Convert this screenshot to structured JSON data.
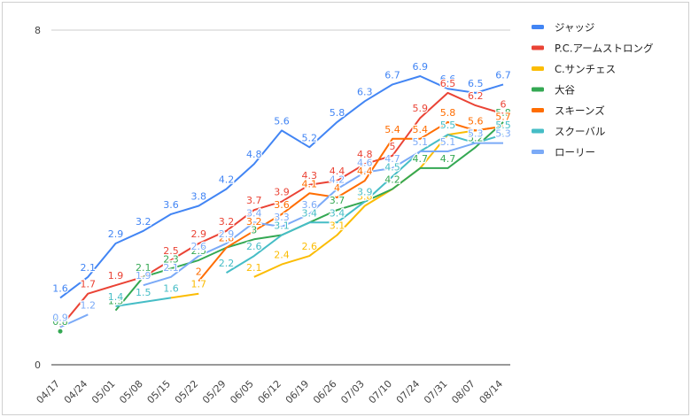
{
  "chart_data": {
    "type": "line",
    "title": "",
    "xlabel": "",
    "ylabel": "",
    "ylim": [
      0,
      8
    ],
    "y_ticks": [
      "0",
      "8"
    ],
    "grid": "horizontal",
    "legend": "right",
    "categories": [
      "04/17",
      "04/24",
      "05/01",
      "05/08",
      "05/15",
      "05/22",
      "05/29",
      "06/05",
      "06/12",
      "06/19",
      "06/26",
      "07/03",
      "07/10",
      "07/24",
      "07/31",
      "08/07",
      "08/14"
    ],
    "series": [
      {
        "name": "ジャッジ",
        "color": "#4285f4",
        "values": [
          1.6,
          2.1,
          2.9,
          3.2,
          3.6,
          3.8,
          4.2,
          4.8,
          5.6,
          5.2,
          5.8,
          6.3,
          6.7,
          6.9,
          6.6,
          6.5,
          6.7
        ]
      },
      {
        "name": "P.C.アームストロング",
        "color": "#ea4335",
        "values": [
          0.9,
          1.7,
          1.9,
          2.1,
          2.5,
          2.9,
          3.2,
          3.7,
          3.9,
          4.3,
          4.4,
          4.8,
          5.0,
          5.9,
          6.5,
          6.2,
          6.0
        ]
      },
      {
        "name": "C.サンチェス",
        "color": "#fbbc04",
        "values": [
          null,
          null,
          null,
          null,
          1.6,
          1.7,
          null,
          2.1,
          2.4,
          2.6,
          3.1,
          3.8,
          4.2,
          4.7,
          5.5,
          5.6,
          5.7
        ]
      },
      {
        "name": "大谷",
        "color": "#34a853",
        "values": [
          0.8,
          null,
          1.3,
          2.1,
          2.3,
          2.5,
          2.8,
          3.0,
          3.1,
          3.4,
          3.7,
          3.9,
          4.2,
          4.7,
          4.7,
          5.2,
          5.8
        ]
      },
      {
        "name": "スキーンズ",
        "color": "#ff6d01",
        "values": [
          null,
          null,
          null,
          null,
          null,
          2.0,
          2.8,
          3.2,
          3.6,
          4.1,
          4.0,
          4.4,
          5.4,
          5.4,
          5.8,
          5.6,
          5.7
        ]
      },
      {
        "name": "スクーバル",
        "color": "#46bdc6",
        "values": [
          null,
          null,
          1.4,
          1.5,
          1.6,
          null,
          2.2,
          2.6,
          3.1,
          3.4,
          3.4,
          3.9,
          4.5,
          5.1,
          5.5,
          5.3,
          5.5
        ]
      },
      {
        "name": "ローリー",
        "color": "#7baaf7",
        "values": [
          0.9,
          1.2,
          null,
          1.9,
          2.1,
          2.6,
          2.9,
          3.4,
          3.3,
          3.6,
          4.2,
          4.6,
          4.7,
          5.1,
          5.1,
          5.3,
          5.3
        ]
      }
    ]
  }
}
